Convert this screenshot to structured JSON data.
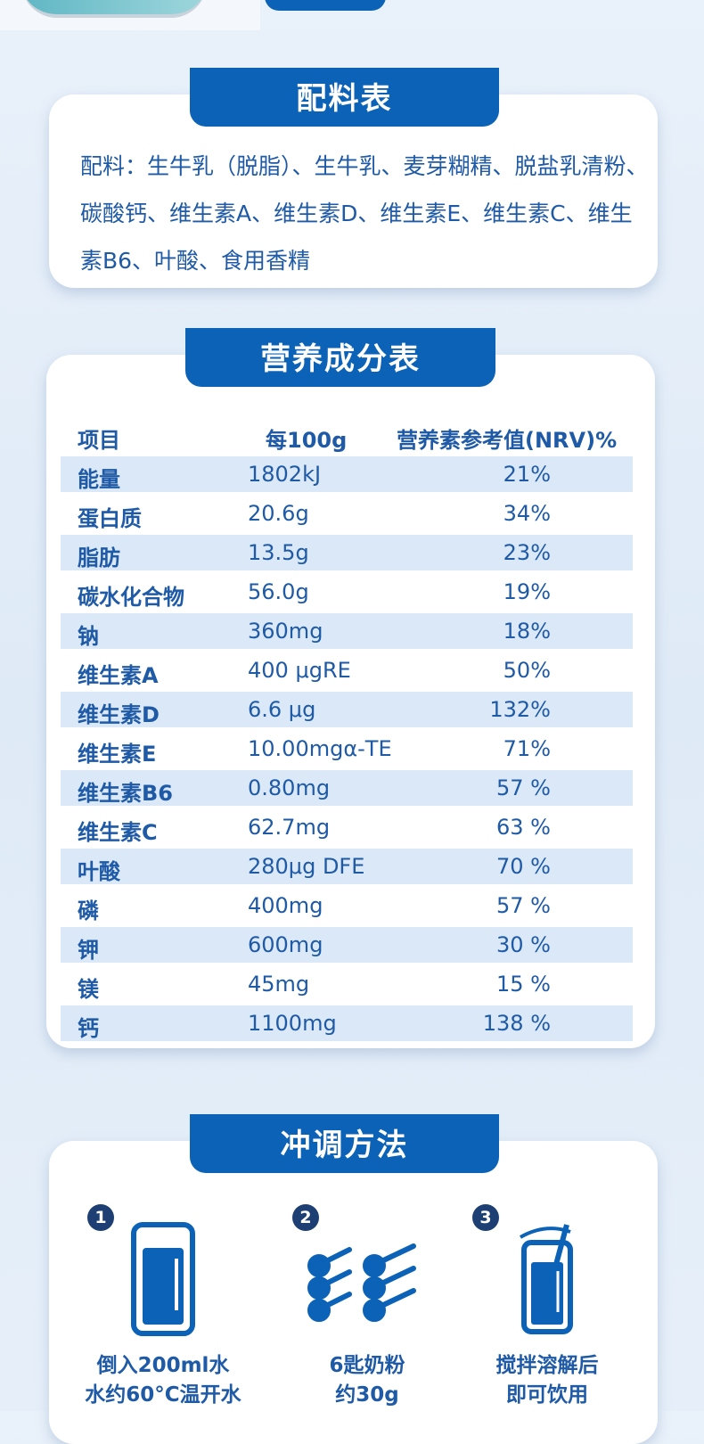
{
  "ingredients": {
    "title": "配料表",
    "text": "配料：生牛乳（脱脂）、生牛乳、麦芽糊精、脱盐乳清粉、碳酸钙、维生素A、维生素D、维生素E、维生素C、维生素B6、叶酸、食用香精"
  },
  "nutrition": {
    "title": "营养成分表",
    "header": [
      "项目",
      "每100g",
      "营养素参考值(NRV)%"
    ],
    "rows": [
      [
        "能量",
        "1802kJ",
        "21%"
      ],
      [
        "蛋白质",
        "20.6g",
        "34%"
      ],
      [
        "脂肪",
        "13.5g",
        "23%"
      ],
      [
        "碳水化合物",
        "56.0g",
        "19%"
      ],
      [
        "钠",
        "360mg",
        "18%"
      ],
      [
        "维生素A",
        "400 μgRE",
        "50%"
      ],
      [
        "维生素D",
        "6.6 μg",
        "132%"
      ],
      [
        "维生素E",
        "10.00mgα-TE",
        "71%"
      ],
      [
        "维生素B6",
        "0.80mg",
        "57 %"
      ],
      [
        "维生素C",
        "62.7mg",
        "63 %"
      ],
      [
        "叶酸",
        "280μg DFE",
        "70 %"
      ],
      [
        "磷",
        "400mg",
        "57 %"
      ],
      [
        "钾",
        "600mg",
        "30 %"
      ],
      [
        "镁",
        "45mg",
        "15 %"
      ],
      [
        "钙",
        "1100mg",
        "138 %"
      ]
    ]
  },
  "method": {
    "title": "冲调方法",
    "steps": [
      {
        "number": "1",
        "lines": [
          "倒入200ml水",
          "水约60°C温开水"
        ]
      },
      {
        "number": "2",
        "lines": [
          "6匙奶粉",
          "约30g"
        ]
      },
      {
        "number": "3",
        "lines": [
          "搅拌溶解后",
          "即可饮用"
        ]
      }
    ]
  }
}
